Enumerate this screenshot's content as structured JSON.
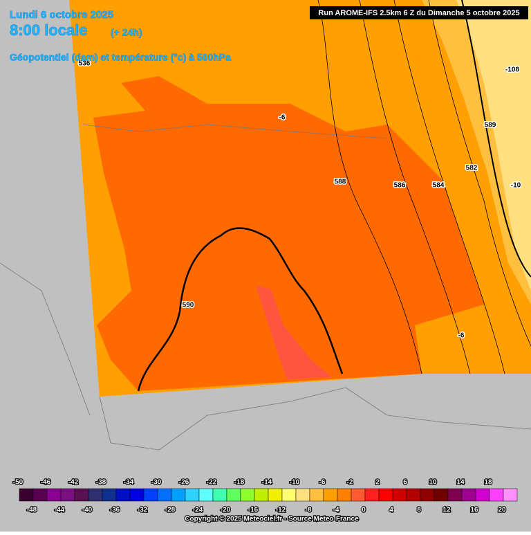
{
  "header": {
    "date": "Lundi 6 octobre 2025",
    "time": "8:00 locale",
    "lead": "(+ 24h)",
    "field": "Géopotentiel (dam) et température (°c) à 500hPa",
    "run": "Run AROME-IFS 2.5km 6 Z du Dimanche 5 octobre 2025"
  },
  "map": {
    "contour_labels": [
      "536",
      "-6",
      "588",
      "586",
      "584",
      "582",
      "589",
      "-108",
      "-10",
      "590",
      "-6"
    ]
  },
  "legend": {
    "labels": [
      -50,
      -48,
      -46,
      -44,
      -42,
      -40,
      -38,
      -36,
      -34,
      -32,
      -30,
      -28,
      -26,
      -24,
      -22,
      -20,
      -18,
      -16,
      -14,
      -12,
      -10,
      -8,
      -6,
      -4,
      -2,
      0,
      2,
      4,
      6,
      8,
      10,
      12,
      14,
      16,
      18,
      20
    ],
    "colors": [
      "#3a0030",
      "#5a0050",
      "#8a0090",
      "#7a1080",
      "#5a1050",
      "#303070",
      "#103090",
      "#0010c0",
      "#0000e0",
      "#0040ff",
      "#0070ff",
      "#00a0ff",
      "#30d0ff",
      "#60ffff",
      "#40ffb0",
      "#60ff60",
      "#90ff30",
      "#c0f000",
      "#f0f000",
      "#ffff70",
      "#ffe080",
      "#ffc040",
      "#ffa000",
      "#ff8000",
      "#ff5a30",
      "#ff2020",
      "#ff0000",
      "#d00000",
      "#b00000",
      "#900000",
      "#700000",
      "#800050",
      "#a00090",
      "#d000d0",
      "#ff40ff",
      "#ff90ff"
    ]
  },
  "footer": {
    "copyright": "Copyright © 2025 Meteociel.fr - Source Meteo-France"
  }
}
